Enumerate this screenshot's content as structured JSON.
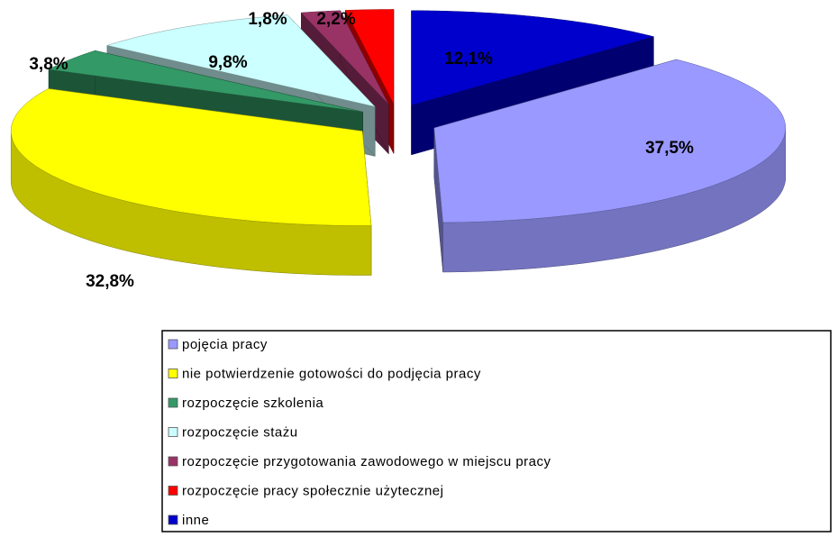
{
  "chart_data": {
    "type": "pie",
    "categories": [
      "pojęcia pracy",
      "nie potwierdzenie gotowości do podjęcia pracy",
      "rozpoczęcie szkolenia",
      "rozpoczęcie stażu",
      "rozpoczęcie przygotowania zawodowego w miejscu pracy",
      "rozpoczęcie pracy społecznie użytecznej",
      "inne"
    ],
    "values": [
      37.5,
      32.8,
      3.8,
      9.8,
      1.8,
      2.2,
      12.1
    ],
    "value_labels": [
      "37,5%",
      "32,8%",
      "3,8%",
      "9,8%",
      "1,8%",
      "2,2%",
      "12,1%"
    ],
    "colors": [
      "#9999ff",
      "#ffff00",
      "#339966",
      "#ccffff",
      "#993366",
      "#ff0000",
      "#0000cc"
    ],
    "legend": "bottom"
  }
}
